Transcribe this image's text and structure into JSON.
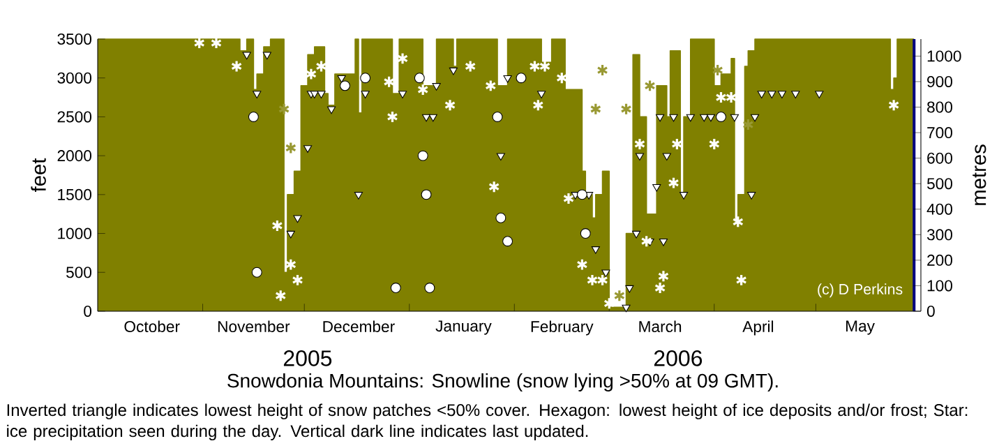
{
  "chart_data": {
    "type": "step",
    "title": "Snowdonia Mountains: Snowline (snow lying >50% at 09 GMT).",
    "ylabel": "feet",
    "y2label": "metres",
    "xlim": [
      "2005-10-01",
      "2006-06-01"
    ],
    "ylim": [
      0,
      3500
    ],
    "yticks": [
      0,
      500,
      1000,
      1500,
      2000,
      2500,
      3000,
      3500
    ],
    "y2lim": [
      0,
      1066.8
    ],
    "y2ticks": [
      0,
      100,
      200,
      300,
      400,
      500,
      600,
      700,
      800,
      900,
      1000
    ],
    "xticks": [
      {
        "value": "2005-11-01",
        "label": null
      },
      {
        "value": "2005-12-01",
        "label": null
      },
      {
        "value": "2006-01-01",
        "label": null
      },
      {
        "value": "2006-02-01",
        "label": null
      },
      {
        "value": "2006-03-01",
        "label": null
      },
      {
        "value": "2006-04-01",
        "label": null
      },
      {
        "value": "2006-05-01",
        "label": null
      },
      {
        "value": "2005-10-17",
        "label": "October"
      },
      {
        "value": "2005-11-16",
        "label": "November"
      },
      {
        "value": "2005-12-17",
        "label": "December"
      },
      {
        "value": "2006-01-17",
        "label": "January"
      },
      {
        "value": "2006-02-15",
        "label": "February"
      },
      {
        "value": "2006-03-16",
        "label": "March"
      },
      {
        "value": "2006-04-14",
        "label": "April"
      },
      {
        "value": "2006-05-14",
        "label": "May"
      }
    ],
    "series": [
      {
        "color": "#808000",
        "x": [
          "2005-10-01",
          "2005-11-12",
          "2005-11-14",
          "2005-11-16",
          "2005-11-17",
          "2005-11-19",
          "2005-11-21",
          "2005-11-25",
          "2005-11-26",
          "2005-11-28",
          "2005-11-30",
          "2005-12-02",
          "2005-12-04",
          "2005-12-07",
          "2005-12-08",
          "2005-12-10",
          "2005-12-16",
          "2005-12-17",
          "2005-12-18",
          "2005-12-27",
          "2005-12-29",
          "2006-01-05",
          "2006-01-09",
          "2006-01-14",
          "2006-01-15",
          "2006-01-27",
          "2006-01-30",
          "2006-02-09",
          "2006-02-12",
          "2006-02-16",
          "2006-02-21",
          "2006-02-22",
          "2006-02-24",
          "2006-02-25",
          "2006-02-27",
          "2006-03-01",
          "2006-03-06",
          "2006-03-08",
          "2006-03-10",
          "2006-03-12",
          "2006-03-15",
          "2006-03-18",
          "2006-03-19",
          "2006-03-22",
          "2006-03-23",
          "2006-03-25",
          "2006-04-01",
          "2006-04-03",
          "2006-04-06",
          "2006-04-07",
          "2006-04-08",
          "2006-04-10",
          "2006-04-11",
          "2006-04-13",
          "2006-05-23",
          "2006-05-24",
          "2006-05-25",
          "2006-05-30"
        ],
        "values": [
          3500,
          3350,
          3500,
          2850,
          3050,
          3400,
          3500,
          500,
          1500,
          1800,
          2900,
          3300,
          3400,
          2800,
          2650,
          3050,
          3500,
          2550,
          3500,
          2800,
          3500,
          2900,
          3500,
          3150,
          3500,
          2900,
          3500,
          3200,
          3500,
          2850,
          1800,
          1500,
          1200,
          1500,
          1800,
          50,
          1000,
          3300,
          2500,
          1250,
          2900,
          2500,
          3350,
          1500,
          2500,
          3500,
          2900,
          3050,
          3250,
          1150,
          1500,
          3150,
          3350,
          3500,
          2850,
          3000,
          3500,
          3500
        ]
      },
      {
        "type": "scatter",
        "marker": "triangle",
        "color": "#ffffff",
        "x": [
          "2005-11-14",
          "2005-11-17",
          "2005-11-20",
          "2005-11-27",
          "2005-11-29",
          "2005-12-02",
          "2005-12-03",
          "2005-12-04",
          "2005-12-06",
          "2005-12-09",
          "2005-12-12",
          "2005-12-17",
          "2005-12-19",
          "2005-12-30",
          "2006-01-06",
          "2006-01-08",
          "2006-01-09",
          "2006-01-14",
          "2006-01-28",
          "2006-01-30",
          "2006-02-09",
          "2006-02-19",
          "2006-02-23",
          "2006-02-25",
          "2006-02-28",
          "2006-03-06",
          "2006-03-07",
          "2006-03-09",
          "2006-03-10",
          "2006-03-13",
          "2006-03-15",
          "2006-03-16",
          "2006-03-17",
          "2006-03-18",
          "2006-03-20",
          "2006-03-23",
          "2006-03-25",
          "2006-03-29",
          "2006-03-31",
          "2006-04-07",
          "2006-04-12",
          "2006-04-13",
          "2006-04-15",
          "2006-04-18",
          "2006-04-21",
          "2006-04-25",
          "2006-05-02"
        ],
        "values": [
          3300,
          2800,
          3300,
          1000,
          1200,
          2100,
          2800,
          2800,
          2800,
          2600,
          3000,
          1500,
          2800,
          2800,
          2500,
          2500,
          2900,
          3100,
          2000,
          3000,
          2800,
          1500,
          1500,
          800,
          500,
          50,
          300,
          1000,
          2000,
          900,
          1600,
          2500,
          900,
          2000,
          2500,
          1500,
          2500,
          2500,
          2500,
          2500,
          1500,
          2500,
          2800,
          2800,
          2800,
          2800,
          2800
        ]
      },
      {
        "type": "scatter",
        "marker": "circle",
        "color": "#ffffff",
        "x": [
          "2005-11-16",
          "2005-11-17",
          "2005-12-13",
          "2005-12-19",
          "2005-12-28",
          "2006-01-04",
          "2006-01-05",
          "2006-01-06",
          "2006-01-07",
          "2006-01-27",
          "2006-01-28",
          "2006-01-30",
          "2006-02-03",
          "2006-02-21",
          "2006-02-22",
          "2006-04-03"
        ],
        "values": [
          2500,
          500,
          2900,
          3000,
          300,
          3000,
          2000,
          1500,
          300,
          2500,
          1200,
          900,
          3000,
          1500,
          1000,
          2500
        ]
      },
      {
        "type": "scatter",
        "marker": "cross",
        "color": "#ffffff",
        "colors": [
          "#ffffff",
          "#ffffff",
          "#ffffff",
          "#ffffff",
          "#ffffff",
          "#999933",
          "#999933",
          "#ffffff",
          "#ffffff",
          "#ffffff",
          "#ffffff",
          "#ffffff",
          "#ffffff",
          "#ffffff",
          "#ffffff",
          "#ffffff",
          "#ffffff",
          "#ffffff",
          "#ffffff",
          "#ffffff",
          "#ffffff",
          "#ffffff",
          "#ffffff",
          "#ffffff",
          "#ffffff",
          "#ffffff",
          "#999933",
          "#999933",
          "#ffffff",
          "#ffffff",
          "#999933",
          "#999933",
          "#ffffff",
          "#ffffff",
          "#999933",
          "#ffffff",
          "#ffffff",
          "#ffffff",
          "#ffffff",
          "#ffffff",
          "#999933",
          "#ffffff",
          "#ffffff",
          "#ffffff",
          "#ffffff",
          "#999933",
          "#ffffff"
        ],
        "x": [
          "2005-10-31",
          "2005-11-05",
          "2005-11-11",
          "2005-11-23",
          "2005-11-24",
          "2005-11-25",
          "2005-11-27",
          "2005-11-27",
          "2005-11-29",
          "2005-12-03",
          "2005-12-06",
          "2005-12-26",
          "2005-12-27",
          "2005-12-30",
          "2006-01-05",
          "2006-01-13",
          "2006-01-19",
          "2006-01-25",
          "2006-01-26",
          "2006-02-07",
          "2006-02-08",
          "2006-02-10",
          "2006-02-15",
          "2006-02-17",
          "2006-02-21",
          "2006-02-24",
          "2006-02-25",
          "2006-02-27",
          "2006-02-27",
          "2006-03-01",
          "2006-03-04",
          "2006-03-06",
          "2006-03-10",
          "2006-03-12",
          "2006-03-13",
          "2006-03-16",
          "2006-03-17",
          "2006-03-20",
          "2006-03-21",
          "2006-04-01",
          "2006-04-02",
          "2006-04-03",
          "2006-04-06",
          "2006-04-08",
          "2006-04-09",
          "2006-04-11",
          "2006-05-24"
        ],
        "values": [
          3450,
          3450,
          3150,
          1100,
          200,
          2600,
          2100,
          600,
          400,
          3050,
          3150,
          2950,
          2500,
          3250,
          2850,
          2650,
          3150,
          2900,
          1600,
          3150,
          2650,
          3150,
          3000,
          1450,
          600,
          400,
          2600,
          3100,
          400,
          100,
          200,
          2600,
          2150,
          900,
          2900,
          300,
          450,
          1650,
          2150,
          2150,
          3100,
          2750,
          2750,
          1150,
          400,
          2400,
          2650
        ]
      }
    ],
    "ref_lines": [
      {
        "axis": "x",
        "value": "2006-05-30",
        "color": "#000080"
      }
    ],
    "annotations": [
      "(c) D Perkins",
      "Inverted triangle indicates lowest height of snow patches <50% cover. Hexagon: lowest height of ice deposits and/or frost; Star: ice precipitation seen during the day. Vertical dark line indicates last updated.",
      "2005",
      "2006"
    ]
  }
}
